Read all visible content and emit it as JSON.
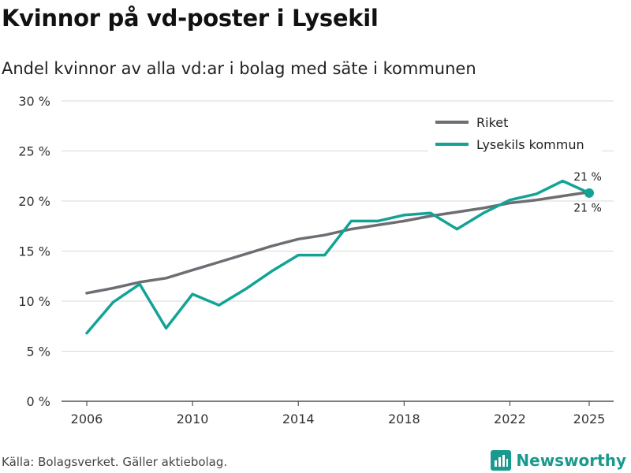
{
  "header": {
    "title": "Kvinnor på vd-poster i Lysekil",
    "subtitle": "Andel kvinnor av alla vd:ar i bolag med säte i kommunen"
  },
  "footer": {
    "source": "Källa: Bolagsverket. Gäller aktiebolag.",
    "brand": "Newsworthy"
  },
  "chart_data": {
    "type": "line",
    "title": "Kvinnor på vd-poster i Lysekil",
    "subtitle": "Andel kvinnor av alla vd:ar i bolag med säte i kommunen",
    "xlabel": "",
    "ylabel": "",
    "x": [
      2006,
      2007,
      2008,
      2009,
      2010,
      2011,
      2012,
      2013,
      2014,
      2015,
      2016,
      2017,
      2018,
      2019,
      2020,
      2021,
      2022,
      2023,
      2024,
      2025
    ],
    "xticks": [
      2006,
      2010,
      2014,
      2018,
      2022,
      2025
    ],
    "xtick_labels": [
      "2006",
      "2010",
      "2014",
      "2018",
      "2022",
      "2025"
    ],
    "xlim": [
      2006,
      2025
    ],
    "ylim": [
      0,
      30
    ],
    "yticks": [
      0,
      5,
      10,
      15,
      20,
      25,
      30
    ],
    "ytick_labels": [
      "0 %",
      "5 %",
      "10 %",
      "15 %",
      "20 %",
      "25 %",
      "30 %"
    ],
    "grid": true,
    "legend_position": "top-right",
    "series": [
      {
        "name": "Riket",
        "color": "#6e6d73",
        "values": [
          10.8,
          11.3,
          11.9,
          12.3,
          13.1,
          13.9,
          14.7,
          15.5,
          16.2,
          16.6,
          17.2,
          17.6,
          18.0,
          18.5,
          18.9,
          19.3,
          19.8,
          20.1,
          20.5,
          20.9
        ],
        "end_label": "21 %"
      },
      {
        "name": "Lysekils kommun",
        "color": "#13a396",
        "values": [
          6.8,
          9.9,
          11.7,
          7.3,
          10.7,
          9.6,
          11.2,
          13.0,
          14.6,
          14.6,
          18.0,
          18.0,
          18.6,
          18.8,
          17.2,
          18.8,
          20.1,
          20.7,
          22.0,
          20.8
        ],
        "end_label": "21 %"
      }
    ]
  }
}
